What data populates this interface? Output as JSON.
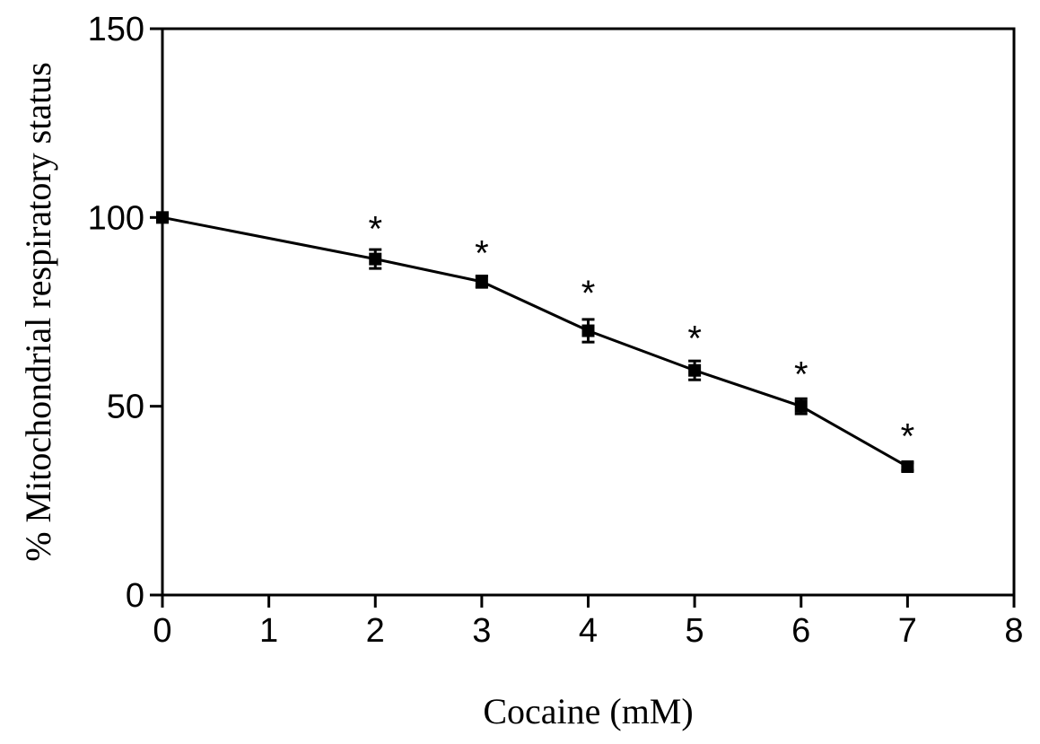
{
  "chart_data": {
    "type": "line",
    "xlabel": "Cocaine (mM)",
    "ylabel": "% Mitochondrial respiratory status",
    "xlim": [
      0,
      8
    ],
    "ylim": [
      0,
      150
    ],
    "x_ticks": [
      0,
      1,
      2,
      3,
      4,
      5,
      6,
      7,
      8
    ],
    "y_ticks": [
      0,
      50,
      100,
      150
    ],
    "x_tick_labels": [
      "0",
      "1",
      "2",
      "3",
      "4",
      "5",
      "6",
      "7",
      "8"
    ],
    "y_tick_labels": [
      "0",
      "50",
      "100",
      "150"
    ],
    "grid": false,
    "series": [
      {
        "x": [
          0,
          2,
          3,
          4,
          5,
          6,
          7
        ],
        "y": [
          100,
          89,
          83,
          70,
          59.5,
          50,
          34
        ],
        "error": [
          0,
          2.5,
          1.5,
          3,
          2.5,
          2,
          1
        ],
        "marker": "square",
        "color": "#000000"
      }
    ],
    "annotations": [
      {
        "x": 2,
        "y": 100,
        "text": "*"
      },
      {
        "x": 3,
        "y": 93.5,
        "text": "*"
      },
      {
        "x": 4,
        "y": 83,
        "text": "*"
      },
      {
        "x": 5,
        "y": 71,
        "text": "*"
      },
      {
        "x": 6,
        "y": 61.5,
        "text": "*"
      },
      {
        "x": 7,
        "y": 45,
        "text": "*"
      }
    ]
  }
}
